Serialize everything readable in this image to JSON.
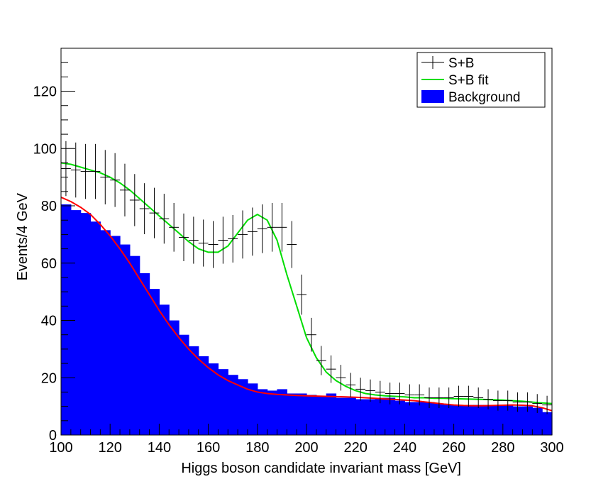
{
  "chart_data": {
    "type": "bar",
    "title": "",
    "xlabel": "Higgs boson candidate invariant mass [GeV]",
    "ylabel": "Events/4 GeV",
    "xlim": [
      100,
      300
    ],
    "ylim": [
      0,
      135
    ],
    "x_ticks": [
      100,
      120,
      140,
      160,
      180,
      200,
      220,
      240,
      260,
      280,
      300
    ],
    "y_ticks": [
      0,
      20,
      40,
      60,
      80,
      100,
      120
    ],
    "bin_width": 4,
    "legend": {
      "placement": "top-right",
      "entries": [
        "S+B",
        "S+B fit",
        "Background"
      ]
    },
    "colors": {
      "background_fill": "#0000ff",
      "sb_fit": "#00dd00",
      "bkg_fit": "#ff0000",
      "sb_points": "#000000"
    },
    "series": [
      {
        "name": "Background",
        "kind": "histogram",
        "bin_centers": [
          102,
          106,
          110,
          114,
          118,
          122,
          126,
          130,
          134,
          138,
          142,
          146,
          150,
          154,
          158,
          162,
          166,
          170,
          174,
          178,
          182,
          186,
          190,
          194,
          198,
          202,
          206,
          210,
          214,
          218,
          222,
          226,
          230,
          234,
          238,
          242,
          246,
          250,
          254,
          258,
          262,
          266,
          270,
          274,
          278,
          282,
          286,
          290,
          294,
          298
        ],
        "values": [
          80.5,
          78.5,
          77.5,
          74.5,
          71.5,
          69.5,
          66.5,
          62.5,
          56.5,
          51,
          45.5,
          40,
          35,
          31,
          27.5,
          25,
          23,
          21,
          19.5,
          18,
          16,
          15.5,
          16,
          14.5,
          14.5,
          14,
          13.5,
          14.5,
          13,
          13,
          12.5,
          12.5,
          13,
          13,
          12,
          11.5,
          11.5,
          11.5,
          11,
          10.5,
          10.5,
          10.5,
          10.5,
          10.5,
          10.5,
          10.5,
          10,
          10,
          9.5,
          8
        ]
      },
      {
        "name": "S+B",
        "kind": "points_with_errors",
        "x": [
          102,
          106,
          110,
          114,
          118,
          122,
          126,
          130,
          134,
          138,
          142,
          146,
          150,
          154,
          158,
          162,
          166,
          170,
          174,
          178,
          182,
          186,
          190,
          194,
          198,
          202,
          206,
          210,
          214,
          218,
          222,
          226,
          230,
          234,
          238,
          242,
          246,
          250,
          254,
          258,
          262,
          266,
          270,
          274,
          278,
          282,
          286,
          290,
          294,
          298
        ],
        "y": [
          93,
          92.5,
          92,
          92,
          90,
          89,
          85.5,
          82,
          79,
          77.5,
          75.5,
          72.5,
          69,
          68,
          67,
          66.5,
          68,
          68.5,
          70,
          71,
          72,
          72.5,
          72.5,
          66.5,
          49,
          35,
          26,
          23,
          20,
          17.5,
          16,
          15.5,
          15,
          14.5,
          14.5,
          14,
          14,
          13,
          13,
          13,
          13.5,
          13.5,
          13,
          12.5,
          12,
          12,
          11.5,
          11.5,
          11,
          10.5
        ],
        "yerr": [
          9.6,
          9.6,
          9.6,
          9.6,
          9.5,
          9.4,
          9.2,
          9.1,
          8.9,
          8.8,
          8.7,
          8.5,
          8.3,
          8.2,
          8.2,
          8.2,
          8.2,
          8.3,
          8.4,
          8.4,
          8.5,
          8.5,
          8.5,
          8.2,
          7.0,
          5.9,
          5.1,
          4.8,
          4.5,
          4.2,
          4.0,
          3.9,
          3.9,
          3.8,
          3.8,
          3.7,
          3.7,
          3.6,
          3.6,
          3.6,
          3.7,
          3.7,
          3.6,
          3.5,
          3.5,
          3.5,
          3.4,
          3.4,
          3.3,
          3.2
        ]
      },
      {
        "name": "S+B fit",
        "kind": "curve",
        "x": [
          100,
          104,
          108,
          112,
          116,
          120,
          124,
          128,
          132,
          136,
          140,
          144,
          148,
          152,
          156,
          160,
          164,
          168,
          172,
          176,
          180,
          184,
          188,
          192,
          196,
          200,
          204,
          208,
          212,
          216,
          220,
          224,
          228,
          232,
          236,
          240,
          244,
          248,
          252,
          256,
          260,
          264,
          268,
          272,
          276,
          280,
          284,
          288,
          292,
          296,
          300
        ],
        "y": [
          95,
          94.5,
          93.5,
          92.5,
          91.5,
          90,
          88,
          85.5,
          82.5,
          79.5,
          76.5,
          73.5,
          70.5,
          67.5,
          65,
          63.8,
          63.8,
          66,
          70.5,
          75,
          77,
          75,
          68,
          56,
          45,
          34,
          27,
          22,
          19,
          17,
          15.5,
          14.5,
          14,
          13.7,
          13.5,
          13.3,
          13,
          13,
          12.8,
          12.8,
          12.7,
          12.6,
          12.5,
          12.4,
          12.3,
          12.2,
          12,
          11.8,
          11.5,
          11.2,
          11
        ]
      },
      {
        "name": "Background fit",
        "kind": "curve",
        "x": [
          100,
          104,
          108,
          112,
          116,
          120,
          124,
          128,
          132,
          136,
          140,
          144,
          148,
          152,
          156,
          160,
          164,
          168,
          172,
          176,
          180,
          184,
          188,
          192,
          196,
          200,
          204,
          208,
          212,
          216,
          220,
          224,
          228,
          232,
          236,
          240,
          244,
          248,
          252,
          256,
          260,
          264,
          268,
          272,
          276,
          280,
          284,
          288,
          292,
          296,
          300
        ],
        "y": [
          83,
          81.5,
          79.5,
          77,
          73.5,
          69.5,
          65,
          60,
          54.5,
          49,
          43.5,
          38.5,
          34,
          30,
          26.5,
          23.5,
          21,
          19,
          17.5,
          16,
          15,
          14.5,
          14.2,
          14,
          13.8,
          13.7,
          13.6,
          13.5,
          13.4,
          13.3,
          13.2,
          13,
          12.8,
          12.6,
          12.4,
          12.2,
          12,
          11.6,
          11.2,
          10.8,
          10.5,
          10.3,
          10.2,
          10.2,
          10.3,
          10.4,
          10.5,
          10.4,
          10.2,
          9.5,
          8.5
        ]
      }
    ]
  }
}
